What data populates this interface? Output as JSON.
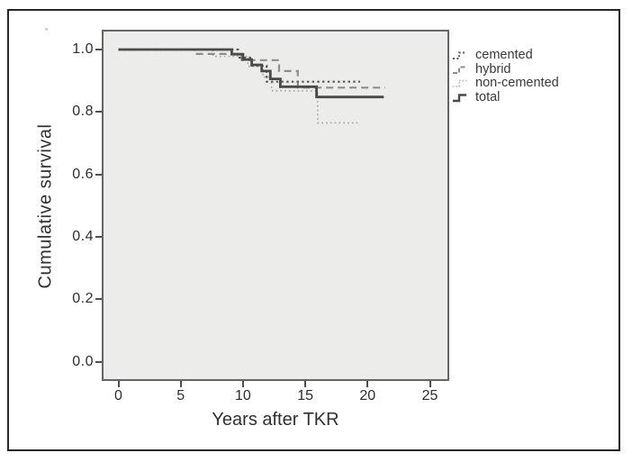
{
  "figure": {
    "description": "Kaplan-Meier cumulative survival plot after total knee replacement (TKR)",
    "plot_bg": "#ececea",
    "frame_color": "#272727",
    "axis_color": "#646464"
  },
  "chart_data": {
    "type": "line",
    "subtype": "kaplan-meier-step",
    "title": "",
    "xlabel": "Years after TKR",
    "ylabel": "Cumulative survival",
    "xlim": [
      -1.3,
      26.6
    ],
    "ylim": [
      -0.06,
      1.06
    ],
    "grid": false,
    "legend_position": "right-outside",
    "xticks": [
      {
        "label": "0",
        "value": 0
      },
      {
        "label": "5",
        "value": 5
      },
      {
        "label": "10",
        "value": 10
      },
      {
        "label": "15",
        "value": 15
      },
      {
        "label": "20",
        "value": 20
      },
      {
        "label": "25",
        "value": 25
      }
    ],
    "yticks": [
      {
        "label": "0.0",
        "value": 0.0
      },
      {
        "label": "0.2",
        "value": 0.2
      },
      {
        "label": "0.4",
        "value": 0.4
      },
      {
        "label": "0.6",
        "value": 0.6
      },
      {
        "label": "0.8",
        "value": 0.8
      },
      {
        "label": "1.0",
        "value": 1.0
      }
    ],
    "series": [
      {
        "name": "non-cemented",
        "style": "fine-dotted",
        "color": "#b0b0b0",
        "points": [
          [
            0,
            1.0
          ],
          [
            7.6,
            1.0
          ],
          [
            7.6,
            0.978
          ],
          [
            10.4,
            0.978
          ],
          [
            10.4,
            0.946
          ],
          [
            11.6,
            0.946
          ],
          [
            11.6,
            0.912
          ],
          [
            12.3,
            0.912
          ],
          [
            12.3,
            0.868
          ],
          [
            16,
            0.868
          ],
          [
            16,
            0.765
          ],
          [
            19.4,
            0.765
          ]
        ]
      },
      {
        "name": "hybrid",
        "style": "dashed",
        "color": "#8e8e8e",
        "points": [
          [
            0,
            1.0
          ],
          [
            6.1,
            1.0
          ],
          [
            6.1,
            0.986
          ],
          [
            9.9,
            0.986
          ],
          [
            9.9,
            0.966
          ],
          [
            12.9,
            0.966
          ],
          [
            12.9,
            0.931
          ],
          [
            14.4,
            0.931
          ],
          [
            14.4,
            0.878
          ],
          [
            21.4,
            0.878
          ]
        ]
      },
      {
        "name": "cemented",
        "style": "dotted",
        "color": "#5c5c5c",
        "points": [
          [
            0,
            1.0
          ],
          [
            9.6,
            1.0
          ],
          [
            9.6,
            0.974
          ],
          [
            10.7,
            0.974
          ],
          [
            10.7,
            0.948
          ],
          [
            11.9,
            0.948
          ],
          [
            11.9,
            0.897
          ],
          [
            19.4,
            0.897
          ]
        ]
      },
      {
        "name": "total",
        "style": "solid",
        "color": "#4a4a4a",
        "points": [
          [
            0,
            1.0
          ],
          [
            9.1,
            1.0
          ],
          [
            9.1,
            0.985
          ],
          [
            10,
            0.985
          ],
          [
            10,
            0.968
          ],
          [
            10.7,
            0.968
          ],
          [
            10.7,
            0.951
          ],
          [
            11.5,
            0.951
          ],
          [
            11.5,
            0.931
          ],
          [
            12.2,
            0.931
          ],
          [
            12.2,
            0.906
          ],
          [
            13,
            0.906
          ],
          [
            13,
            0.881
          ],
          [
            15.9,
            0.881
          ],
          [
            15.9,
            0.848
          ],
          [
            21.3,
            0.848
          ]
        ]
      }
    ]
  },
  "legend": {
    "items": [
      {
        "label": "cemented"
      },
      {
        "label": "hybrid"
      },
      {
        "label": "non-cemented"
      },
      {
        "label": "total"
      }
    ]
  }
}
